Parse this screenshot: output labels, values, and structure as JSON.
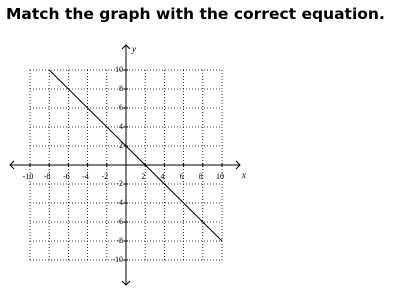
{
  "chart_data": {
    "type": "line",
    "title": "Match the graph with the correct equation.",
    "x": [
      -8,
      10
    ],
    "series": [
      {
        "color": "#000000",
        "values": [
          10,
          -8
        ]
      }
    ],
    "xlim": [
      -10,
      10
    ],
    "ylim": [
      -10,
      10
    ],
    "xticks": [
      -10,
      -8,
      -6,
      -4,
      -2,
      2,
      4,
      6,
      8,
      10
    ],
    "yticks": [
      -10,
      -8,
      -6,
      -4,
      -2,
      2,
      4,
      6,
      8,
      10
    ],
    "xlabel": "x",
    "ylabel": "y",
    "grid": true
  }
}
